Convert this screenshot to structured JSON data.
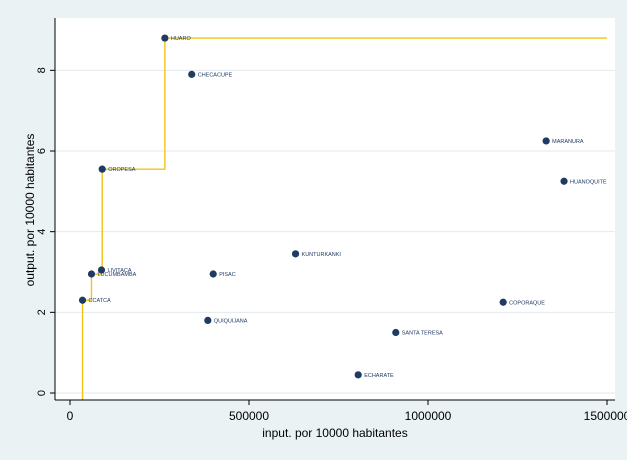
{
  "chart_data": {
    "type": "scatter",
    "xlabel": "input. por 10000 habitantes",
    "ylabel": "output. por 10000 habitantes",
    "xlim": [
      0,
      1500000
    ],
    "ylim": [
      0,
      9
    ],
    "x_ticks": [
      "0",
      "500000",
      "1000000",
      "1500000"
    ],
    "y_ticks": [
      "0",
      "2",
      "4",
      "6",
      "8"
    ],
    "grid": "horizontal",
    "colors": {
      "point": "#1f3b63",
      "frontier": "#f0c419",
      "plot_bg": "#ffffff",
      "outer_bg": "#eaf2f3"
    },
    "points": [
      {
        "label": "HUARO",
        "x": 265000,
        "y": 8.8
      },
      {
        "label": "CHECACUPE",
        "x": 340000,
        "y": 7.9
      },
      {
        "label": "OROPESA",
        "x": 90000,
        "y": 5.55
      },
      {
        "label": "LUCUMBAMBA",
        "x": 60000,
        "y": 2.95
      },
      {
        "label": "LIVITACA",
        "x": 88000,
        "y": 3.05
      },
      {
        "label": "CCATCA",
        "x": 35000,
        "y": 2.3
      },
      {
        "label": "PISAC",
        "x": 400000,
        "y": 2.95
      },
      {
        "label": "KUNTURKANKI",
        "x": 630000,
        "y": 3.45
      },
      {
        "label": "QUIQUIJANA",
        "x": 385000,
        "y": 1.8
      },
      {
        "label": "SANTA TERESA",
        "x": 910000,
        "y": 1.5
      },
      {
        "label": "ECHARATE",
        "x": 805000,
        "y": 0.45
      },
      {
        "label": "MARANURA",
        "x": 1330000,
        "y": 6.25
      },
      {
        "label": "HUANOQUITE",
        "x": 1380000,
        "y": 5.25
      },
      {
        "label": "COPORAQUE",
        "x": 1210000,
        "y": 2.25
      }
    ],
    "frontier": [
      [
        35000,
        -0.2
      ],
      [
        35000,
        2.3
      ],
      [
        60000,
        2.3
      ],
      [
        60000,
        2.95
      ],
      [
        88000,
        2.95
      ],
      [
        88000,
        3.05
      ],
      [
        90000,
        3.05
      ],
      [
        90000,
        5.55
      ],
      [
        265000,
        5.55
      ],
      [
        265000,
        8.8
      ],
      [
        1500000,
        8.8
      ]
    ]
  }
}
